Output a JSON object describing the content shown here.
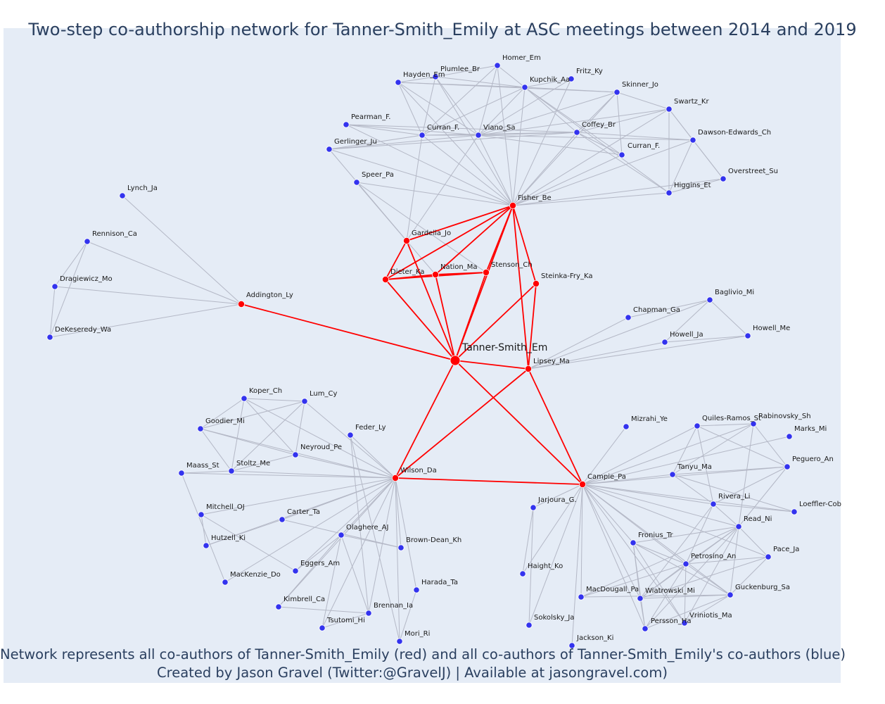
{
  "title": "Two-step co-authorship network for Tanner-Smith_Emily at ASC meetings between 2014 and 2019",
  "caption_line1": "Network represents all co-authors of Tanner-Smith_Emily (red) and all co-authors of Tanner-Smith_Emily's co-authors (blue)",
  "caption_line2": "Created by Jason Gravel (Twitter:@GravelJ) | Available at jasongravel.com)",
  "colors": {
    "background": "#e5ecf6",
    "first_step": "#ff0000",
    "second_step": "#3333ee",
    "first_step_edge": "#ff0000",
    "second_step_edge": "#b4b8c6",
    "text": "#2a3f5f"
  },
  "nodes": [
    {
      "id": "tanner",
      "label": "Tanner-Smith_Em",
      "group": "center"
    },
    {
      "id": "fisher",
      "label": "Fisher_Be",
      "group": "first"
    },
    {
      "id": "gardella",
      "label": "Gardella_Jo",
      "group": "first"
    },
    {
      "id": "dieter",
      "label": "Dieter_Ka",
      "group": "first"
    },
    {
      "id": "nation",
      "label": "Nation_Ma",
      "group": "first"
    },
    {
      "id": "stenson",
      "label": "Stenson_Ch",
      "group": "first"
    },
    {
      "id": "steinka",
      "label": "Steinka-Fry_Ka",
      "group": "first"
    },
    {
      "id": "addington",
      "label": "Addington_Ly",
      "group": "first"
    },
    {
      "id": "lipsey",
      "label": "Lipsey_Ma",
      "group": "first"
    },
    {
      "id": "wilson",
      "label": "Wilson_Da",
      "group": "first"
    },
    {
      "id": "campie",
      "label": "Campie_Pa",
      "group": "first"
    },
    {
      "id": "homer",
      "label": "Homer_Em",
      "group": "second"
    },
    {
      "id": "plumlee",
      "label": "Plumlee_Br",
      "group": "second"
    },
    {
      "id": "hayden",
      "label": "Hayden_Em",
      "group": "second"
    },
    {
      "id": "kupchik",
      "label": "Kupchik_Aa",
      "group": "second"
    },
    {
      "id": "fritz",
      "label": "Fritz_Ky",
      "group": "second"
    },
    {
      "id": "skinner",
      "label": "Skinner_Jo",
      "group": "second"
    },
    {
      "id": "swartz",
      "label": "Swartz_Kr",
      "group": "second"
    },
    {
      "id": "pearman",
      "label": "Pearman_F.",
      "group": "second"
    },
    {
      "id": "curranf1",
      "label": "Curran_F.",
      "group": "second"
    },
    {
      "id": "viano",
      "label": "Viano_Sa",
      "group": "second"
    },
    {
      "id": "coffey",
      "label": "Coffey_Br",
      "group": "second"
    },
    {
      "id": "dawson",
      "label": "Dawson-Edwards_Ch",
      "group": "second"
    },
    {
      "id": "gerlinger",
      "label": "Gerlinger_Ju",
      "group": "second"
    },
    {
      "id": "curranf2",
      "label": "Curran_F.",
      "group": "second"
    },
    {
      "id": "overstreet",
      "label": "Overstreet_Su",
      "group": "second"
    },
    {
      "id": "speer",
      "label": "Speer_Pa",
      "group": "second"
    },
    {
      "id": "higgins",
      "label": "Higgins_Et",
      "group": "second"
    },
    {
      "id": "lynch",
      "label": "Lynch_Ja",
      "group": "second"
    },
    {
      "id": "rennison",
      "label": "Rennison_Ca",
      "group": "second"
    },
    {
      "id": "dragiewicz",
      "label": "Dragiewicz_Mo",
      "group": "second"
    },
    {
      "id": "dekeseredy",
      "label": "DeKeseredy_Wa",
      "group": "second"
    },
    {
      "id": "baglivio",
      "label": "Baglivio_Mi",
      "group": "second"
    },
    {
      "id": "chapman",
      "label": "Chapman_Ga",
      "group": "second"
    },
    {
      "id": "howellja",
      "label": "Howell_Ja",
      "group": "second"
    },
    {
      "id": "howellme",
      "label": "Howell_Me",
      "group": "second"
    },
    {
      "id": "koper",
      "label": "Koper_Ch",
      "group": "second"
    },
    {
      "id": "lum",
      "label": "Lum_Cy",
      "group": "second"
    },
    {
      "id": "goodier",
      "label": "Goodier_Mi",
      "group": "second"
    },
    {
      "id": "feder",
      "label": "Feder_Ly",
      "group": "second"
    },
    {
      "id": "neyroud",
      "label": "Neyroud_Pe",
      "group": "second"
    },
    {
      "id": "maass",
      "label": "Maass_St",
      "group": "second"
    },
    {
      "id": "stoltz",
      "label": "Stoltz_Me",
      "group": "second"
    },
    {
      "id": "mitchell",
      "label": "Mitchell_OJ",
      "group": "second"
    },
    {
      "id": "carter",
      "label": "Carter_Ta",
      "group": "second"
    },
    {
      "id": "olaghere",
      "label": "Olaghere_AJ",
      "group": "second"
    },
    {
      "id": "hutzell",
      "label": "Hutzell_Ki",
      "group": "second"
    },
    {
      "id": "browndean",
      "label": "Brown-Dean_Kh",
      "group": "second"
    },
    {
      "id": "eggers",
      "label": "Eggers_Am",
      "group": "second"
    },
    {
      "id": "mackenzie",
      "label": "MacKenzie_Do",
      "group": "second"
    },
    {
      "id": "harada",
      "label": "Harada_Ta",
      "group": "second"
    },
    {
      "id": "kimbrell",
      "label": "Kimbrell_Ca",
      "group": "second"
    },
    {
      "id": "brennan",
      "label": "Brennan_Ia",
      "group": "second"
    },
    {
      "id": "tsutomi",
      "label": "Tsutomi_Hi",
      "group": "second"
    },
    {
      "id": "mori",
      "label": "Mori_Ri",
      "group": "second"
    },
    {
      "id": "mizrahi",
      "label": "Mizrahi_Ye",
      "group": "second"
    },
    {
      "id": "quiles",
      "label": "Quiles-Ramos_St",
      "group": "second"
    },
    {
      "id": "rabinovsky",
      "label": "Rabinovsky_Sh",
      "group": "second"
    },
    {
      "id": "marks",
      "label": "Marks_Mi",
      "group": "second"
    },
    {
      "id": "peguero",
      "label": "Peguero_An",
      "group": "second"
    },
    {
      "id": "tanyu",
      "label": "Tanyu_Ma",
      "group": "second"
    },
    {
      "id": "jarjoura",
      "label": "Jarjoura_G.",
      "group": "second"
    },
    {
      "id": "rivera",
      "label": "Rivera_Li",
      "group": "second"
    },
    {
      "id": "loeffler",
      "label": "Loeffler-Cob",
      "group": "second"
    },
    {
      "id": "read",
      "label": "Read_Ni",
      "group": "second"
    },
    {
      "id": "fronius",
      "label": "Fronius_Tr",
      "group": "second"
    },
    {
      "id": "pace",
      "label": "Pace_Ja",
      "group": "second"
    },
    {
      "id": "petrosino",
      "label": "Petrosino_An",
      "group": "second"
    },
    {
      "id": "haight",
      "label": "Haight_Ko",
      "group": "second"
    },
    {
      "id": "macdougall",
      "label": "MacDougall_Pa",
      "group": "second"
    },
    {
      "id": "wiatrowski",
      "label": "Wiatrowski_Mi",
      "group": "second"
    },
    {
      "id": "guckenburg",
      "label": "Guckenburg_Sa",
      "group": "second"
    },
    {
      "id": "sokolsky",
      "label": "Sokolsky_Ja",
      "group": "second"
    },
    {
      "id": "persson",
      "label": "Persson_Ha",
      "group": "second"
    },
    {
      "id": "vriniotis",
      "label": "Vriniotis_Ma",
      "group": "second"
    },
    {
      "id": "jackson",
      "label": "Jackson_Ki",
      "group": "second"
    }
  ],
  "edges": [
    [
      "tanner",
      "fisher"
    ],
    [
      "tanner",
      "gardella"
    ],
    [
      "tanner",
      "dieter"
    ],
    [
      "tanner",
      "nation"
    ],
    [
      "tanner",
      "stenson"
    ],
    [
      "tanner",
      "steinka"
    ],
    [
      "tanner",
      "addington"
    ],
    [
      "tanner",
      "lipsey"
    ],
    [
      "tanner",
      "wilson"
    ],
    [
      "tanner",
      "campie"
    ],
    [
      "fisher",
      "gardella"
    ],
    [
      "fisher",
      "dieter"
    ],
    [
      "fisher",
      "nation"
    ],
    [
      "fisher",
      "stenson"
    ],
    [
      "fisher",
      "steinka"
    ],
    [
      "fisher",
      "lipsey"
    ],
    [
      "dieter",
      "nation"
    ],
    [
      "dieter",
      "stenson"
    ],
    [
      "nation",
      "stenson"
    ],
    [
      "dieter",
      "gardella"
    ],
    [
      "wilson",
      "lipsey"
    ],
    [
      "wilson",
      "campie"
    ],
    [
      "lipsey",
      "campie"
    ],
    [
      "lipsey",
      "steinka"
    ],
    [
      "fisher",
      "homer"
    ],
    [
      "fisher",
      "plumlee"
    ],
    [
      "fisher",
      "hayden"
    ],
    [
      "fisher",
      "kupchik"
    ],
    [
      "fisher",
      "fritz"
    ],
    [
      "fisher",
      "skinner"
    ],
    [
      "fisher",
      "swartz"
    ],
    [
      "fisher",
      "pearman"
    ],
    [
      "fisher",
      "curranf1"
    ],
    [
      "fisher",
      "viano"
    ],
    [
      "fisher",
      "coffey"
    ],
    [
      "fisher",
      "dawson"
    ],
    [
      "fisher",
      "gerlinger"
    ],
    [
      "fisher",
      "curranf2"
    ],
    [
      "fisher",
      "overstreet"
    ],
    [
      "fisher",
      "speer"
    ],
    [
      "fisher",
      "higgins"
    ],
    [
      "hayden",
      "plumlee"
    ],
    [
      "hayden",
      "kupchik"
    ],
    [
      "hayden",
      "viano"
    ],
    [
      "hayden",
      "curranf1"
    ],
    [
      "hayden",
      "skinner"
    ],
    [
      "plumlee",
      "homer"
    ],
    [
      "plumlee",
      "viano"
    ],
    [
      "plumlee",
      "curranf1"
    ],
    [
      "plumlee",
      "kupchik"
    ],
    [
      "homer",
      "viano"
    ],
    [
      "homer",
      "kupchik"
    ],
    [
      "homer",
      "curranf1"
    ],
    [
      "kupchik",
      "viano"
    ],
    [
      "kupchik",
      "coffey"
    ],
    [
      "kupchik",
      "fritz"
    ],
    [
      "kupchik",
      "skinner"
    ],
    [
      "kupchik",
      "curranf2"
    ],
    [
      "kupchik",
      "curranf1"
    ],
    [
      "kupchik",
      "higgins"
    ],
    [
      "fritz",
      "viano"
    ],
    [
      "skinner",
      "viano"
    ],
    [
      "skinner",
      "coffey"
    ],
    [
      "skinner",
      "swartz"
    ],
    [
      "skinner",
      "curranf2"
    ],
    [
      "swartz",
      "coffey"
    ],
    [
      "swartz",
      "dawson"
    ],
    [
      "swartz",
      "higgins"
    ],
    [
      "swartz",
      "overstreet"
    ],
    [
      "swartz",
      "viano"
    ],
    [
      "pearman",
      "curranf1"
    ],
    [
      "pearman",
      "viano"
    ],
    [
      "pearman",
      "coffey"
    ],
    [
      "gerlinger",
      "curranf1"
    ],
    [
      "gerlinger",
      "viano"
    ],
    [
      "gerlinger",
      "gardella"
    ],
    [
      "gerlinger",
      "coffey"
    ],
    [
      "curranf1",
      "viano"
    ],
    [
      "curranf1",
      "coffey"
    ],
    [
      "curranf1",
      "gardella"
    ],
    [
      "viano",
      "coffey"
    ],
    [
      "viano",
      "curranf2"
    ],
    [
      "viano",
      "gardella"
    ],
    [
      "viano",
      "dawson"
    ],
    [
      "coffey",
      "dawson"
    ],
    [
      "coffey",
      "higgins"
    ],
    [
      "coffey",
      "curranf2"
    ],
    [
      "dawson",
      "higgins"
    ],
    [
      "dawson",
      "overstreet"
    ],
    [
      "higgins",
      "overstreet"
    ],
    [
      "speer",
      "gardella"
    ],
    [
      "speer",
      "stenson"
    ],
    [
      "speer",
      "nation"
    ],
    [
      "addington",
      "lynch"
    ],
    [
      "addington",
      "rennison"
    ],
    [
      "addington",
      "dragiewicz"
    ],
    [
      "addington",
      "dekeseredy"
    ],
    [
      "rennison",
      "dragiewicz"
    ],
    [
      "rennison",
      "dekeseredy"
    ],
    [
      "dragiewicz",
      "dekeseredy"
    ],
    [
      "lipsey",
      "baglivio"
    ],
    [
      "lipsey",
      "chapman"
    ],
    [
      "lipsey",
      "howellja"
    ],
    [
      "lipsey",
      "howellme"
    ],
    [
      "baglivio",
      "chapman"
    ],
    [
      "baglivio",
      "howellja"
    ],
    [
      "baglivio",
      "howellme"
    ],
    [
      "howellja",
      "howellme"
    ],
    [
      "wilson",
      "koper"
    ],
    [
      "wilson",
      "lum"
    ],
    [
      "wilson",
      "goodier"
    ],
    [
      "wilson",
      "feder"
    ],
    [
      "wilson",
      "neyroud"
    ],
    [
      "wilson",
      "maass"
    ],
    [
      "wilson",
      "stoltz"
    ],
    [
      "wilson",
      "mitchell"
    ],
    [
      "wilson",
      "carter"
    ],
    [
      "wilson",
      "olaghere"
    ],
    [
      "wilson",
      "hutzell"
    ],
    [
      "wilson",
      "browndean"
    ],
    [
      "wilson",
      "eggers"
    ],
    [
      "wilson",
      "mackenzie"
    ],
    [
      "wilson",
      "harada"
    ],
    [
      "wilson",
      "kimbrell"
    ],
    [
      "wilson",
      "brennan"
    ],
    [
      "wilson",
      "tsutomi"
    ],
    [
      "wilson",
      "mori"
    ],
    [
      "koper",
      "lum"
    ],
    [
      "koper",
      "goodier"
    ],
    [
      "koper",
      "neyroud"
    ],
    [
      "koper",
      "stoltz"
    ],
    [
      "lum",
      "goodier"
    ],
    [
      "lum",
      "neyroud"
    ],
    [
      "lum",
      "stoltz"
    ],
    [
      "goodier",
      "neyroud"
    ],
    [
      "goodier",
      "stoltz"
    ],
    [
      "neyroud",
      "stoltz"
    ],
    [
      "maass",
      "stoltz"
    ],
    [
      "maass",
      "mackenzie"
    ],
    [
      "mitchell",
      "hutzell"
    ],
    [
      "mitchell",
      "eggers"
    ],
    [
      "hutzell",
      "carter"
    ],
    [
      "olaghere",
      "browndean"
    ],
    [
      "olaghere",
      "eggers"
    ],
    [
      "olaghere",
      "kimbrell"
    ],
    [
      "olaghere",
      "brennan"
    ],
    [
      "olaghere",
      "tsutomi"
    ],
    [
      "carter",
      "browndean"
    ],
    [
      "feder",
      "brennan"
    ],
    [
      "feder",
      "mori"
    ],
    [
      "kimbrell",
      "brennan"
    ],
    [
      "harada",
      "mori"
    ],
    [
      "tsutomi",
      "brennan"
    ],
    [
      "campie",
      "mizrahi"
    ],
    [
      "campie",
      "quiles"
    ],
    [
      "campie",
      "rabinovsky"
    ],
    [
      "campie",
      "marks"
    ],
    [
      "campie",
      "peguero"
    ],
    [
      "campie",
      "tanyu"
    ],
    [
      "campie",
      "jarjoura"
    ],
    [
      "campie",
      "rivera"
    ],
    [
      "campie",
      "loeffler"
    ],
    [
      "campie",
      "read"
    ],
    [
      "campie",
      "fronius"
    ],
    [
      "campie",
      "pace"
    ],
    [
      "campie",
      "petrosino"
    ],
    [
      "campie",
      "haight"
    ],
    [
      "campie",
      "macdougall"
    ],
    [
      "campie",
      "wiatrowski"
    ],
    [
      "campie",
      "guckenburg"
    ],
    [
      "campie",
      "sokolsky"
    ],
    [
      "campie",
      "persson"
    ],
    [
      "campie",
      "vriniotis"
    ],
    [
      "campie",
      "jackson"
    ],
    [
      "quiles",
      "rabinovsky"
    ],
    [
      "quiles",
      "tanyu"
    ],
    [
      "quiles",
      "rivera"
    ],
    [
      "quiles",
      "peguero"
    ],
    [
      "rabinovsky",
      "tanyu"
    ],
    [
      "rabinovsky",
      "peguero"
    ],
    [
      "rabinovsky",
      "read"
    ],
    [
      "peguero",
      "tanyu"
    ],
    [
      "peguero",
      "rivera"
    ],
    [
      "peguero",
      "read"
    ],
    [
      "tanyu",
      "rivera"
    ],
    [
      "tanyu",
      "loeffler"
    ],
    [
      "rivera",
      "read"
    ],
    [
      "rivera",
      "loeffler"
    ],
    [
      "rivera",
      "petrosino"
    ],
    [
      "rivera",
      "wiatrowski"
    ],
    [
      "read",
      "fronius"
    ],
    [
      "read",
      "pace"
    ],
    [
      "read",
      "petrosino"
    ],
    [
      "read",
      "macdougall"
    ],
    [
      "read",
      "wiatrowski"
    ],
    [
      "read",
      "guckenburg"
    ],
    [
      "read",
      "persson"
    ],
    [
      "read",
      "vriniotis"
    ],
    [
      "fronius",
      "petrosino"
    ],
    [
      "fronius",
      "wiatrowski"
    ],
    [
      "fronius",
      "guckenburg"
    ],
    [
      "fronius",
      "persson"
    ],
    [
      "fronius",
      "vriniotis"
    ],
    [
      "petrosino",
      "pace"
    ],
    [
      "petrosino",
      "macdougall"
    ],
    [
      "petrosino",
      "wiatrowski"
    ],
    [
      "petrosino",
      "guckenburg"
    ],
    [
      "petrosino",
      "persson"
    ],
    [
      "petrosino",
      "vriniotis"
    ],
    [
      "pace",
      "guckenburg"
    ],
    [
      "pace",
      "wiatrowski"
    ],
    [
      "macdougall",
      "guckenburg"
    ],
    [
      "wiatrowski",
      "guckenburg"
    ],
    [
      "wiatrowski",
      "persson"
    ],
    [
      "guckenburg",
      "persson"
    ],
    [
      "guckenburg",
      "vriniotis"
    ],
    [
      "jarjoura",
      "haight"
    ],
    [
      "jarjoura",
      "sokolsky"
    ]
  ]
}
